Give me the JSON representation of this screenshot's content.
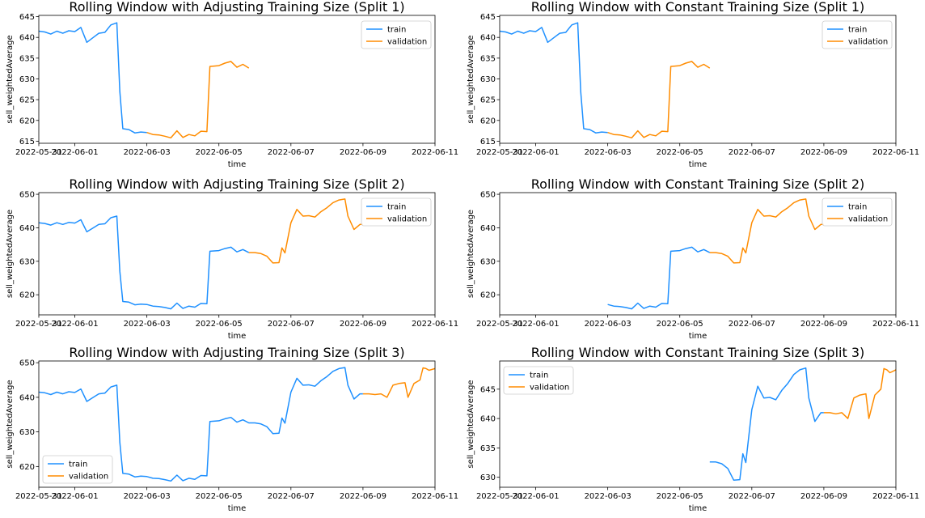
{
  "figure": {
    "background": "#ffffff",
    "colors": {
      "train": "#1e90ff",
      "validation": "#ff8c00"
    }
  },
  "chart_data": [
    {
      "type": "line",
      "title": "Rolling Window with Adjusting Training Size (Split 1)",
      "xlabel": "time",
      "ylabel": "sell_weightedAverage",
      "xlim": [
        "2022-05-31",
        "2022-06-11"
      ],
      "ylim": [
        614.5,
        645.3
      ],
      "xticks": [
        "2022-05-31",
        "2022-06-01",
        "2022-06-03",
        "2022-06-05",
        "2022-06-07",
        "2022-06-09",
        "2022-06-11"
      ],
      "yticks": [
        615,
        620,
        625,
        630,
        635,
        640,
        645
      ],
      "legend": {
        "placement": "upper right"
      },
      "series": [
        {
          "name": "train",
          "color": "#1e90ff",
          "x": [
            "2022-05-31",
            "2022-05-31T04",
            "2022-05-31T08",
            "2022-05-31T12",
            "2022-05-31T16",
            "2022-05-31T20",
            "2022-06-01",
            "2022-06-01T04",
            "2022-06-01T08",
            "2022-06-01T12",
            "2022-06-01T16",
            "2022-06-01T20",
            "2022-06-02",
            "2022-06-02T04",
            "2022-06-02T06",
            "2022-06-02T08",
            "2022-06-02T12",
            "2022-06-02T16",
            "2022-06-02T20",
            "2022-06-03"
          ],
          "y": [
            641.5,
            641.3,
            640.8,
            641.5,
            641.0,
            641.6,
            641.4,
            642.4,
            638.8,
            639.9,
            641.0,
            641.2,
            643.0,
            643.5,
            627.0,
            618.0,
            617.8,
            617.0,
            617.2,
            617.1
          ]
        },
        {
          "name": "validation",
          "color": "#ff8c00",
          "x": [
            "2022-06-03",
            "2022-06-03T04",
            "2022-06-03T08",
            "2022-06-03T12",
            "2022-06-03T16",
            "2022-06-03T20",
            "2022-06-04",
            "2022-06-04T04",
            "2022-06-04T08",
            "2022-06-04T12",
            "2022-06-04T16",
            "2022-06-04T18",
            "2022-06-05",
            "2022-06-05T04",
            "2022-06-05T08",
            "2022-06-05T12",
            "2022-06-05T16",
            "2022-06-05T20"
          ],
          "y": [
            617.1,
            616.6,
            616.5,
            616.2,
            615.8,
            617.5,
            615.9,
            616.6,
            616.3,
            617.4,
            617.3,
            633.0,
            633.2,
            633.8,
            634.2,
            632.8,
            633.5,
            632.6
          ]
        }
      ]
    },
    {
      "type": "line",
      "title": "Rolling Window with Constant Training Size (Split 1)",
      "xlabel": "time",
      "ylabel": "sell_weightedAverage",
      "xlim": [
        "2022-05-31",
        "2022-06-11"
      ],
      "ylim": [
        614.5,
        645.3
      ],
      "xticks": [
        "2022-05-31",
        "2022-06-01",
        "2022-06-03",
        "2022-06-05",
        "2022-06-07",
        "2022-06-09",
        "2022-06-11"
      ],
      "yticks": [
        615,
        620,
        625,
        630,
        635,
        640,
        645
      ],
      "legend": {
        "placement": "upper right"
      },
      "series": [
        {
          "name": "train",
          "color": "#1e90ff",
          "x": [
            "2022-05-31",
            "2022-05-31T04",
            "2022-05-31T08",
            "2022-05-31T12",
            "2022-05-31T16",
            "2022-05-31T20",
            "2022-06-01",
            "2022-06-01T04",
            "2022-06-01T08",
            "2022-06-01T12",
            "2022-06-01T16",
            "2022-06-01T20",
            "2022-06-02",
            "2022-06-02T04",
            "2022-06-02T06",
            "2022-06-02T08",
            "2022-06-02T12",
            "2022-06-02T16",
            "2022-06-02T20",
            "2022-06-03"
          ],
          "y": [
            641.5,
            641.3,
            640.8,
            641.5,
            641.0,
            641.6,
            641.4,
            642.4,
            638.8,
            639.9,
            641.0,
            641.2,
            643.0,
            643.5,
            627.0,
            618.0,
            617.8,
            617.0,
            617.2,
            617.1
          ]
        },
        {
          "name": "validation",
          "color": "#ff8c00",
          "x": [
            "2022-06-03",
            "2022-06-03T04",
            "2022-06-03T08",
            "2022-06-03T12",
            "2022-06-03T16",
            "2022-06-03T20",
            "2022-06-04",
            "2022-06-04T04",
            "2022-06-04T08",
            "2022-06-04T12",
            "2022-06-04T16",
            "2022-06-04T18",
            "2022-06-05",
            "2022-06-05T04",
            "2022-06-05T08",
            "2022-06-05T12",
            "2022-06-05T16",
            "2022-06-05T20"
          ],
          "y": [
            617.1,
            616.6,
            616.5,
            616.2,
            615.8,
            617.5,
            615.9,
            616.6,
            616.3,
            617.4,
            617.3,
            633.0,
            633.2,
            633.8,
            634.2,
            632.8,
            633.5,
            632.6
          ]
        }
      ]
    },
    {
      "type": "line",
      "title": "Rolling Window with Adjusting Training Size (Split 2)",
      "xlabel": "time",
      "ylabel": "sell_weightedAverage",
      "xlim": [
        "2022-05-31",
        "2022-06-11"
      ],
      "ylim": [
        614,
        650.5
      ],
      "xticks": [
        "2022-05-31",
        "2022-06-01",
        "2022-06-03",
        "2022-06-05",
        "2022-06-07",
        "2022-06-09",
        "2022-06-11"
      ],
      "yticks": [
        620,
        630,
        640,
        650
      ],
      "legend": {
        "placement": "upper right"
      },
      "series": [
        {
          "name": "train",
          "color": "#1e90ff",
          "x": [
            "2022-05-31",
            "2022-05-31T04",
            "2022-05-31T08",
            "2022-05-31T12",
            "2022-05-31T16",
            "2022-05-31T20",
            "2022-06-01",
            "2022-06-01T04",
            "2022-06-01T08",
            "2022-06-01T12",
            "2022-06-01T16",
            "2022-06-01T20",
            "2022-06-02",
            "2022-06-02T04",
            "2022-06-02T06",
            "2022-06-02T08",
            "2022-06-02T12",
            "2022-06-02T16",
            "2022-06-02T20",
            "2022-06-03",
            "2022-06-03T04",
            "2022-06-03T08",
            "2022-06-03T12",
            "2022-06-03T16",
            "2022-06-03T20",
            "2022-06-04",
            "2022-06-04T04",
            "2022-06-04T08",
            "2022-06-04T12",
            "2022-06-04T16",
            "2022-06-04T18",
            "2022-06-05",
            "2022-06-05T04",
            "2022-06-05T08",
            "2022-06-05T12",
            "2022-06-05T16",
            "2022-06-05T20"
          ],
          "y": [
            641.5,
            641.3,
            640.8,
            641.5,
            641.0,
            641.6,
            641.4,
            642.4,
            638.8,
            639.9,
            641.0,
            641.2,
            643.0,
            643.5,
            627.0,
            618.0,
            617.8,
            617.0,
            617.2,
            617.1,
            616.6,
            616.5,
            616.2,
            615.8,
            617.5,
            615.9,
            616.6,
            616.3,
            617.4,
            617.3,
            633.0,
            633.2,
            633.8,
            634.2,
            632.8,
            633.5,
            632.6
          ]
        },
        {
          "name": "validation",
          "color": "#ff8c00",
          "x": [
            "2022-06-05T20",
            "2022-06-06",
            "2022-06-06T04",
            "2022-06-06T08",
            "2022-06-06T12",
            "2022-06-06T16",
            "2022-06-06T18",
            "2022-06-06T20",
            "2022-06-07",
            "2022-06-07T04",
            "2022-06-07T08",
            "2022-06-07T12",
            "2022-06-07T16",
            "2022-06-07T20",
            "2022-06-08",
            "2022-06-08T04",
            "2022-06-08T08",
            "2022-06-08T12",
            "2022-06-08T14",
            "2022-06-08T18",
            "2022-06-08T22",
            "2022-06-09"
          ],
          "y": [
            632.6,
            632.6,
            632.3,
            631.5,
            629.5,
            629.6,
            634.0,
            632.5,
            641.5,
            645.5,
            643.5,
            643.6,
            643.2,
            644.8,
            646.0,
            647.5,
            648.3,
            648.6,
            643.5,
            639.5,
            641.0,
            641.0
          ]
        }
      ]
    },
    {
      "type": "line",
      "title": "Rolling Window with Constant Training Size (Split 2)",
      "xlabel": "time",
      "ylabel": "sell_weightedAverage",
      "xlim": [
        "2022-05-31",
        "2022-06-11"
      ],
      "ylim": [
        614,
        650.5
      ],
      "xticks": [
        "2022-05-31",
        "2022-06-01",
        "2022-06-03",
        "2022-06-05",
        "2022-06-07",
        "2022-06-09",
        "2022-06-11"
      ],
      "yticks": [
        620,
        630,
        640,
        650
      ],
      "legend": {
        "placement": "upper right"
      },
      "series": [
        {
          "name": "train",
          "color": "#1e90ff",
          "x": [
            "2022-06-03",
            "2022-06-03T04",
            "2022-06-03T08",
            "2022-06-03T12",
            "2022-06-03T16",
            "2022-06-03T20",
            "2022-06-04",
            "2022-06-04T04",
            "2022-06-04T08",
            "2022-06-04T12",
            "2022-06-04T16",
            "2022-06-04T18",
            "2022-06-05",
            "2022-06-05T04",
            "2022-06-05T08",
            "2022-06-05T12",
            "2022-06-05T16",
            "2022-06-05T20"
          ],
          "y": [
            617.1,
            616.6,
            616.5,
            616.2,
            615.8,
            617.5,
            615.9,
            616.6,
            616.3,
            617.4,
            617.3,
            633.0,
            633.2,
            633.8,
            634.2,
            632.8,
            633.5,
            632.6
          ]
        },
        {
          "name": "validation",
          "color": "#ff8c00",
          "x": [
            "2022-06-05T20",
            "2022-06-06",
            "2022-06-06T04",
            "2022-06-06T08",
            "2022-06-06T12",
            "2022-06-06T16",
            "2022-06-06T18",
            "2022-06-06T20",
            "2022-06-07",
            "2022-06-07T04",
            "2022-06-07T08",
            "2022-06-07T12",
            "2022-06-07T16",
            "2022-06-07T20",
            "2022-06-08",
            "2022-06-08T04",
            "2022-06-08T08",
            "2022-06-08T12",
            "2022-06-08T14",
            "2022-06-08T18",
            "2022-06-08T22",
            "2022-06-09"
          ],
          "y": [
            632.6,
            632.6,
            632.3,
            631.5,
            629.5,
            629.6,
            634.0,
            632.5,
            641.5,
            645.5,
            643.5,
            643.6,
            643.2,
            644.8,
            646.0,
            647.5,
            648.3,
            648.6,
            643.5,
            639.5,
            641.0,
            641.0
          ]
        }
      ]
    },
    {
      "type": "line",
      "title": "Rolling Window with Adjusting Training Size (Split 3)",
      "xlabel": "time",
      "ylabel": "sell_weightedAverage",
      "xlim": [
        "2022-05-31",
        "2022-06-11"
      ],
      "ylim": [
        614,
        650.5
      ],
      "xticks": [
        "2022-05-31",
        "2022-06-01",
        "2022-06-03",
        "2022-06-05",
        "2022-06-07",
        "2022-06-09",
        "2022-06-11"
      ],
      "yticks": [
        620,
        630,
        640,
        650
      ],
      "legend": {
        "placement": "lower left"
      },
      "series": [
        {
          "name": "train",
          "color": "#1e90ff",
          "x": [
            "2022-05-31",
            "2022-05-31T04",
            "2022-05-31T08",
            "2022-05-31T12",
            "2022-05-31T16",
            "2022-05-31T20",
            "2022-06-01",
            "2022-06-01T04",
            "2022-06-01T08",
            "2022-06-01T12",
            "2022-06-01T16",
            "2022-06-01T20",
            "2022-06-02",
            "2022-06-02T04",
            "2022-06-02T06",
            "2022-06-02T08",
            "2022-06-02T12",
            "2022-06-02T16",
            "2022-06-02T20",
            "2022-06-03",
            "2022-06-03T04",
            "2022-06-03T08",
            "2022-06-03T12",
            "2022-06-03T16",
            "2022-06-03T20",
            "2022-06-04",
            "2022-06-04T04",
            "2022-06-04T08",
            "2022-06-04T12",
            "2022-06-04T16",
            "2022-06-04T18",
            "2022-06-05",
            "2022-06-05T04",
            "2022-06-05T08",
            "2022-06-05T12",
            "2022-06-05T16",
            "2022-06-05T20",
            "2022-06-06",
            "2022-06-06T04",
            "2022-06-06T08",
            "2022-06-06T12",
            "2022-06-06T16",
            "2022-06-06T18",
            "2022-06-06T20",
            "2022-06-07",
            "2022-06-07T04",
            "2022-06-07T08",
            "2022-06-07T12",
            "2022-06-07T16",
            "2022-06-07T20",
            "2022-06-08",
            "2022-06-08T04",
            "2022-06-08T08",
            "2022-06-08T12",
            "2022-06-08T14",
            "2022-06-08T18",
            "2022-06-08T22",
            "2022-06-09"
          ],
          "y": [
            641.5,
            641.3,
            640.8,
            641.5,
            641.0,
            641.6,
            641.4,
            642.4,
            638.8,
            639.9,
            641.0,
            641.2,
            643.0,
            643.5,
            627.0,
            618.0,
            617.8,
            617.0,
            617.2,
            617.1,
            616.6,
            616.5,
            616.2,
            615.8,
            617.5,
            615.9,
            616.6,
            616.3,
            617.4,
            617.3,
            633.0,
            633.2,
            633.8,
            634.2,
            632.8,
            633.5,
            632.6,
            632.6,
            632.3,
            631.5,
            629.5,
            629.6,
            634.0,
            632.5,
            641.5,
            645.5,
            643.5,
            643.6,
            643.2,
            644.8,
            646.0,
            647.5,
            648.3,
            648.6,
            643.5,
            639.5,
            641.0,
            641.0
          ]
        },
        {
          "name": "validation",
          "color": "#ff8c00",
          "x": [
            "2022-06-09",
            "2022-06-09T04",
            "2022-06-09T08",
            "2022-06-09T12",
            "2022-06-09T16",
            "2022-06-09T20",
            "2022-06-10",
            "2022-06-10T04",
            "2022-06-10T06",
            "2022-06-10T10",
            "2022-06-10T14",
            "2022-06-10T16",
            "2022-06-10T18",
            "2022-06-10T20",
            "2022-06-11"
          ],
          "y": [
            641.0,
            641.0,
            640.8,
            641.0,
            640.0,
            643.5,
            644.0,
            644.2,
            640.0,
            644.0,
            645.0,
            648.5,
            648.3,
            647.8,
            648.3
          ]
        }
      ]
    },
    {
      "type": "line",
      "title": "Rolling Window with Constant Training Size (Split 3)",
      "xlabel": "time",
      "ylabel": "sell_weightedAverage",
      "xlim": [
        "2022-05-31",
        "2022-06-11"
      ],
      "ylim": [
        628.3,
        649.8
      ],
      "xticks": [
        "2022-05-31",
        "2022-06-01",
        "2022-06-03",
        "2022-06-05",
        "2022-06-07",
        "2022-06-09",
        "2022-06-11"
      ],
      "yticks": [
        630,
        635,
        640,
        645
      ],
      "legend": {
        "placement": "upper left"
      },
      "series": [
        {
          "name": "train",
          "color": "#1e90ff",
          "x": [
            "2022-06-05T20",
            "2022-06-06",
            "2022-06-06T04",
            "2022-06-06T08",
            "2022-06-06T12",
            "2022-06-06T16",
            "2022-06-06T18",
            "2022-06-06T20",
            "2022-06-07",
            "2022-06-07T04",
            "2022-06-07T08",
            "2022-06-07T12",
            "2022-06-07T16",
            "2022-06-07T20",
            "2022-06-08",
            "2022-06-08T04",
            "2022-06-08T08",
            "2022-06-08T12",
            "2022-06-08T14",
            "2022-06-08T18",
            "2022-06-08T22",
            "2022-06-09"
          ],
          "y": [
            632.6,
            632.6,
            632.3,
            631.5,
            629.5,
            629.6,
            634.0,
            632.5,
            641.5,
            645.5,
            643.5,
            643.6,
            643.2,
            644.8,
            646.0,
            647.5,
            648.3,
            648.6,
            643.5,
            639.5,
            641.0,
            641.0
          ]
        },
        {
          "name": "validation",
          "color": "#ff8c00",
          "x": [
            "2022-06-09",
            "2022-06-09T04",
            "2022-06-09T08",
            "2022-06-09T12",
            "2022-06-09T16",
            "2022-06-09T20",
            "2022-06-10",
            "2022-06-10T04",
            "2022-06-10T06",
            "2022-06-10T10",
            "2022-06-10T14",
            "2022-06-10T16",
            "2022-06-10T18",
            "2022-06-10T20",
            "2022-06-11"
          ],
          "y": [
            641.0,
            641.0,
            640.8,
            641.0,
            640.0,
            643.5,
            644.0,
            644.2,
            640.0,
            644.0,
            645.0,
            648.5,
            648.3,
            647.8,
            648.3
          ]
        }
      ]
    }
  ]
}
